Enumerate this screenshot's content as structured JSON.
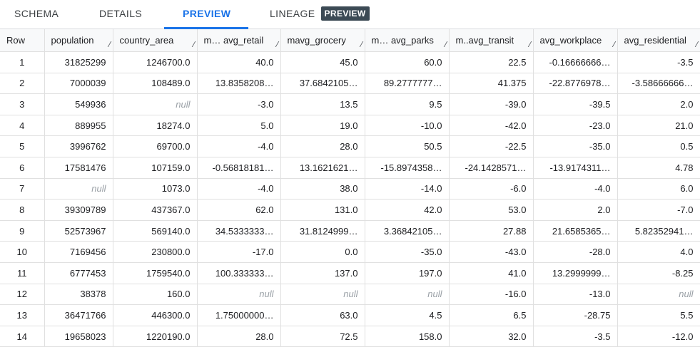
{
  "tabs": [
    {
      "label": "SCHEMA"
    },
    {
      "label": "DETAILS"
    },
    {
      "label": "PREVIEW"
    },
    {
      "label": "LINEAGE",
      "badge": "PREVIEW"
    }
  ],
  "table": {
    "columns": [
      "Row",
      "population",
      "country_area",
      "mavg_retail",
      "mavg_grocery",
      "mavg_parks",
      "mavg_transit",
      "avg_workplace",
      "avg_residential"
    ],
    "header_display": [
      "Row",
      "population",
      "country_area",
      "m… avg_retail",
      "mavg_grocery",
      "m… avg_parks",
      "m..avg_transit",
      "avg_workplace",
      "avg_residential"
    ],
    "rows": [
      [
        "1",
        "31825299",
        "1246700.0",
        "40.0",
        "45.0",
        "60.0",
        "22.5",
        "-0.16666666…",
        "-3.5"
      ],
      [
        "2",
        "7000039",
        "108489.0",
        "13.8358208…",
        "37.6842105…",
        "89.2777777…",
        "41.375",
        "-22.8776978…",
        "-3.58666666…"
      ],
      [
        "3",
        "549936",
        "null",
        "-3.0",
        "13.5",
        "9.5",
        "-39.0",
        "-39.5",
        "2.0"
      ],
      [
        "4",
        "889955",
        "18274.0",
        "5.0",
        "19.0",
        "-10.0",
        "-42.0",
        "-23.0",
        "21.0"
      ],
      [
        "5",
        "3996762",
        "69700.0",
        "-4.0",
        "28.0",
        "50.5",
        "-22.5",
        "-35.0",
        "0.5"
      ],
      [
        "6",
        "17581476",
        "107159.0",
        "-0.56818181…",
        "13.1621621…",
        "-15.8974358…",
        "-24.1428571…",
        "-13.9174311…",
        "4.78"
      ],
      [
        "7",
        "null",
        "1073.0",
        "-4.0",
        "38.0",
        "-14.0",
        "-6.0",
        "-4.0",
        "6.0"
      ],
      [
        "8",
        "39309789",
        "437367.0",
        "62.0",
        "131.0",
        "42.0",
        "53.0",
        "2.0",
        "-7.0"
      ],
      [
        "9",
        "52573967",
        "569140.0",
        "34.5333333…",
        "31.8124999…",
        "3.36842105…",
        "27.88",
        "21.6585365…",
        "5.82352941…"
      ],
      [
        "10",
        "7169456",
        "230800.0",
        "-17.0",
        "0.0",
        "-35.0",
        "-43.0",
        "-28.0",
        "4.0"
      ],
      [
        "11",
        "6777453",
        "1759540.0",
        "100.333333…",
        "137.0",
        "197.0",
        "41.0",
        "13.2999999…",
        "-8.25"
      ],
      [
        "12",
        "38378",
        "160.0",
        "null",
        "null",
        "null",
        "-16.0",
        "-13.0",
        "null"
      ],
      [
        "13",
        "36471766",
        "446300.0",
        "1.75000000…",
        "63.0",
        "4.5",
        "6.5",
        "-28.75",
        "5.5"
      ],
      [
        "14",
        "19658023",
        "1220190.0",
        "28.0",
        "72.5",
        "158.0",
        "32.0",
        "-3.5",
        "-12.0"
      ]
    ]
  },
  "colors": {
    "accent": "#1a73e8",
    "badge_bg": "#3c4a55",
    "null_text": "#9aa0a6",
    "header_bg": "#f8f9fa"
  }
}
